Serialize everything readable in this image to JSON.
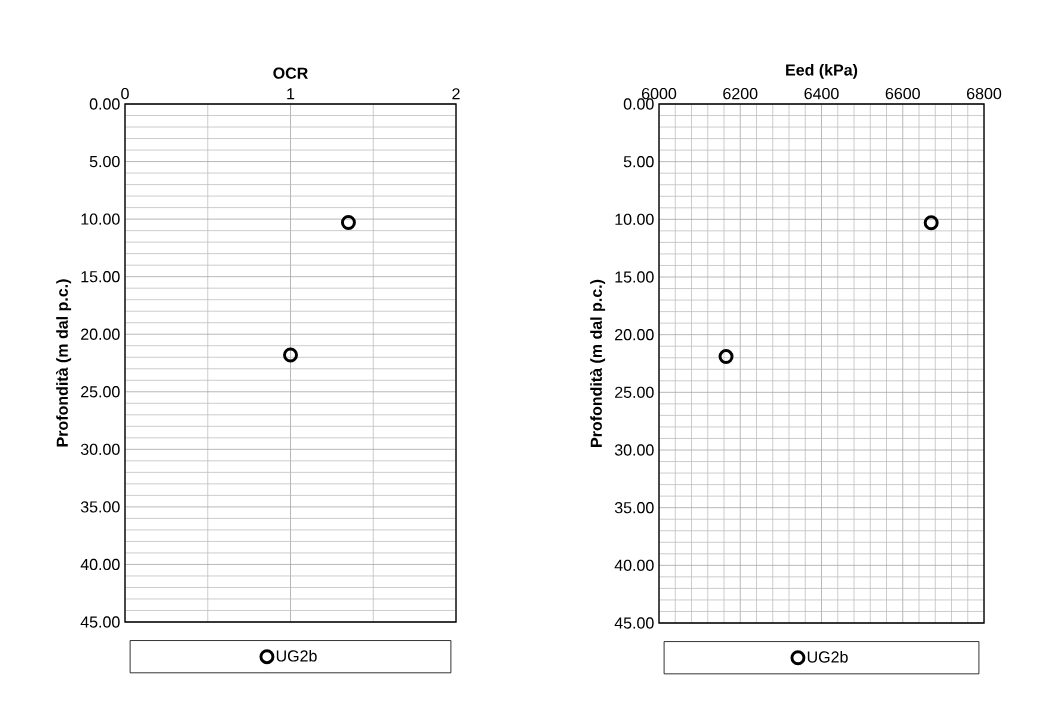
{
  "chart_data": [
    {
      "type": "scatter",
      "xlabel": "OCR",
      "ylabel": "Profondità (m dal p.c.)",
      "xlim": [
        0,
        2
      ],
      "xticks": [
        0,
        1,
        2
      ],
      "ylim": [
        45,
        0
      ],
      "yticks": [
        {
          "value": 0,
          "label": "0.00"
        },
        {
          "value": 5,
          "label": "5.00"
        },
        {
          "value": 10,
          "label": "10.00"
        },
        {
          "value": 15,
          "label": "15.00"
        },
        {
          "value": 20,
          "label": "20.00"
        },
        {
          "value": 25,
          "label": "25.00"
        },
        {
          "value": 30,
          "label": "30.00"
        },
        {
          "value": 35,
          "label": "35.00"
        },
        {
          "value": 40,
          "label": "40.00"
        },
        {
          "value": 45,
          "label": "45.00"
        }
      ],
      "grid": true,
      "legend": "bottom",
      "marker": "circle",
      "series": [
        {
          "name": "UG2b",
          "color": "#000000",
          "x": [
            1.35,
            1.0
          ],
          "values": [
            10.3,
            21.8
          ]
        }
      ]
    },
    {
      "type": "scatter",
      "xlabel": "Eed (kPa)",
      "ylabel": "Profondità (m dal p.c.)",
      "xlim": [
        6000,
        6800
      ],
      "xticks": [
        6000,
        6200,
        6400,
        6600,
        6800
      ],
      "ylim": [
        45,
        0
      ],
      "yticks": [
        {
          "value": 0,
          "label": "0.00"
        },
        {
          "value": 5,
          "label": "5.00"
        },
        {
          "value": 10,
          "label": "10.00"
        },
        {
          "value": 15,
          "label": "15.00"
        },
        {
          "value": 20,
          "label": "20.00"
        },
        {
          "value": 25,
          "label": "25.00"
        },
        {
          "value": 30,
          "label": "30.00"
        },
        {
          "value": 35,
          "label": "35.00"
        },
        {
          "value": 40,
          "label": "40.00"
        },
        {
          "value": 45,
          "label": "45.00"
        }
      ],
      "grid": true,
      "legend": "bottom",
      "marker": "circle",
      "series": [
        {
          "name": "UG2b",
          "color": "#000000",
          "x": [
            6670,
            6165
          ],
          "values": [
            10.3,
            21.9
          ]
        }
      ]
    }
  ]
}
